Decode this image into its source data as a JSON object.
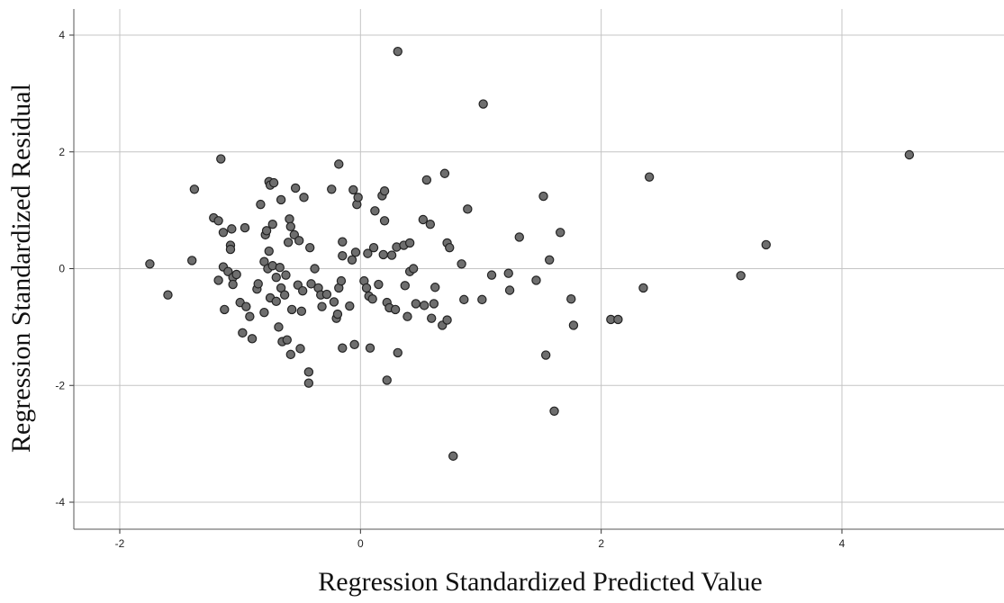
{
  "chart_data": {
    "type": "scatter",
    "xlabel": "Regression Standardized Predicted Value",
    "ylabel": "Regression Standardized Residual",
    "xlim": [
      -2.4,
      5.35
    ],
    "ylim": [
      -4.45,
      4.45
    ],
    "x_ticks": [
      -2,
      0,
      2,
      4
    ],
    "y_ticks": [
      -4,
      -2,
      0,
      2,
      4
    ],
    "x_tick_labels": [
      "-2",
      "0",
      "2",
      "4"
    ],
    "y_tick_labels": [
      "-4",
      "-2",
      "0",
      "2",
      "4"
    ],
    "grid": true,
    "point_color": "#6e6e6e",
    "point_edge_color": "#222222",
    "gridline_color": "#c4c4c4",
    "points": [
      {
        "x": -1.75,
        "y": 0.08
      },
      {
        "x": -1.6,
        "y": -0.45
      },
      {
        "x": -1.4,
        "y": 0.14
      },
      {
        "x": -1.38,
        "y": 1.36
      },
      {
        "x": -1.22,
        "y": 0.87
      },
      {
        "x": -1.18,
        "y": 0.82
      },
      {
        "x": -1.18,
        "y": -0.2
      },
      {
        "x": -1.16,
        "y": 1.88
      },
      {
        "x": -1.14,
        "y": 0.62
      },
      {
        "x": -1.14,
        "y": 0.03
      },
      {
        "x": -1.13,
        "y": -0.7
      },
      {
        "x": -1.1,
        "y": -0.05
      },
      {
        "x": -1.08,
        "y": 0.4
      },
      {
        "x": -1.08,
        "y": 0.33
      },
      {
        "x": -1.07,
        "y": 0.68
      },
      {
        "x": -1.06,
        "y": -0.15
      },
      {
        "x": -1.06,
        "y": -0.27
      },
      {
        "x": -1.03,
        "y": -0.1
      },
      {
        "x": -1.0,
        "y": -0.58
      },
      {
        "x": -0.98,
        "y": -1.1
      },
      {
        "x": -0.96,
        "y": 0.7
      },
      {
        "x": -0.95,
        "y": -0.65
      },
      {
        "x": -0.92,
        "y": -0.82
      },
      {
        "x": -0.9,
        "y": -1.2
      },
      {
        "x": -0.86,
        "y": -0.35
      },
      {
        "x": -0.85,
        "y": -0.26
      },
      {
        "x": -0.83,
        "y": 1.1
      },
      {
        "x": -0.8,
        "y": -0.75
      },
      {
        "x": -0.8,
        "y": 0.12
      },
      {
        "x": -0.79,
        "y": 0.58
      },
      {
        "x": -0.78,
        "y": 0.65
      },
      {
        "x": -0.77,
        "y": 0.0
      },
      {
        "x": -0.76,
        "y": 0.3
      },
      {
        "x": -0.76,
        "y": 1.49
      },
      {
        "x": -0.75,
        "y": 1.43
      },
      {
        "x": -0.75,
        "y": -0.5
      },
      {
        "x": -0.73,
        "y": 0.76
      },
      {
        "x": -0.73,
        "y": 0.05
      },
      {
        "x": -0.72,
        "y": 1.47
      },
      {
        "x": -0.7,
        "y": -0.56
      },
      {
        "x": -0.7,
        "y": -0.15
      },
      {
        "x": -0.68,
        "y": -1.0
      },
      {
        "x": -0.67,
        "y": 0.02
      },
      {
        "x": -0.66,
        "y": -0.33
      },
      {
        "x": -0.66,
        "y": 1.18
      },
      {
        "x": -0.65,
        "y": -1.25
      },
      {
        "x": -0.63,
        "y": -0.45
      },
      {
        "x": -0.62,
        "y": -0.11
      },
      {
        "x": -0.61,
        "y": -1.22
      },
      {
        "x": -0.6,
        "y": 0.45
      },
      {
        "x": -0.59,
        "y": 0.85
      },
      {
        "x": -0.58,
        "y": 0.72
      },
      {
        "x": -0.58,
        "y": -1.47
      },
      {
        "x": -0.57,
        "y": -0.7
      },
      {
        "x": -0.55,
        "y": 0.58
      },
      {
        "x": -0.54,
        "y": 1.38
      },
      {
        "x": -0.52,
        "y": -0.28
      },
      {
        "x": -0.51,
        "y": 0.48
      },
      {
        "x": -0.5,
        "y": -1.37
      },
      {
        "x": -0.49,
        "y": -0.73
      },
      {
        "x": -0.48,
        "y": -0.38
      },
      {
        "x": -0.47,
        "y": 1.22
      },
      {
        "x": -0.43,
        "y": -1.77
      },
      {
        "x": -0.43,
        "y": -1.96
      },
      {
        "x": -0.42,
        "y": 0.36
      },
      {
        "x": -0.41,
        "y": -0.26
      },
      {
        "x": -0.38,
        "y": 0.0
      },
      {
        "x": -0.35,
        "y": -0.33
      },
      {
        "x": -0.33,
        "y": -0.45
      },
      {
        "x": -0.32,
        "y": -0.65
      },
      {
        "x": -0.28,
        "y": -0.44
      },
      {
        "x": -0.24,
        "y": 1.36
      },
      {
        "x": -0.22,
        "y": -0.57
      },
      {
        "x": -0.2,
        "y": -0.85
      },
      {
        "x": -0.19,
        "y": -0.78
      },
      {
        "x": -0.18,
        "y": -0.33
      },
      {
        "x": -0.18,
        "y": 1.79
      },
      {
        "x": -0.16,
        "y": -0.21
      },
      {
        "x": -0.15,
        "y": 0.46
      },
      {
        "x": -0.15,
        "y": 0.22
      },
      {
        "x": -0.15,
        "y": -1.36
      },
      {
        "x": -0.09,
        "y": -0.64
      },
      {
        "x": -0.07,
        "y": 0.15
      },
      {
        "x": -0.06,
        "y": 1.35
      },
      {
        "x": -0.05,
        "y": -1.3
      },
      {
        "x": -0.04,
        "y": 0.28
      },
      {
        "x": -0.03,
        "y": 1.1
      },
      {
        "x": -0.02,
        "y": 1.22
      },
      {
        "x": 0.03,
        "y": -0.21
      },
      {
        "x": 0.05,
        "y": -0.33
      },
      {
        "x": 0.06,
        "y": 0.26
      },
      {
        "x": 0.07,
        "y": -0.47
      },
      {
        "x": 0.08,
        "y": -1.36
      },
      {
        "x": 0.1,
        "y": -0.52
      },
      {
        "x": 0.11,
        "y": 0.36
      },
      {
        "x": 0.12,
        "y": 0.99
      },
      {
        "x": 0.15,
        "y": -0.27
      },
      {
        "x": 0.18,
        "y": 1.25
      },
      {
        "x": 0.19,
        "y": 0.24
      },
      {
        "x": 0.2,
        "y": 1.33
      },
      {
        "x": 0.2,
        "y": 0.82
      },
      {
        "x": 0.22,
        "y": -0.58
      },
      {
        "x": 0.22,
        "y": -1.91
      },
      {
        "x": 0.24,
        "y": -0.67
      },
      {
        "x": 0.26,
        "y": 0.23
      },
      {
        "x": 0.29,
        "y": -0.7
      },
      {
        "x": 0.3,
        "y": 0.37
      },
      {
        "x": 0.31,
        "y": -1.44
      },
      {
        "x": 0.31,
        "y": 3.72
      },
      {
        "x": 0.36,
        "y": 0.4
      },
      {
        "x": 0.37,
        "y": -0.29
      },
      {
        "x": 0.39,
        "y": -0.82
      },
      {
        "x": 0.41,
        "y": 0.44
      },
      {
        "x": 0.41,
        "y": -0.05
      },
      {
        "x": 0.44,
        "y": 0.0
      },
      {
        "x": 0.46,
        "y": -0.6
      },
      {
        "x": 0.52,
        "y": 0.84
      },
      {
        "x": 0.53,
        "y": -0.63
      },
      {
        "x": 0.55,
        "y": 1.52
      },
      {
        "x": 0.58,
        "y": 0.76
      },
      {
        "x": 0.59,
        "y": -0.85
      },
      {
        "x": 0.61,
        "y": -0.6
      },
      {
        "x": 0.62,
        "y": -0.32
      },
      {
        "x": 0.68,
        "y": -0.97
      },
      {
        "x": 0.7,
        "y": 1.63
      },
      {
        "x": 0.72,
        "y": 0.44
      },
      {
        "x": 0.72,
        "y": -0.88
      },
      {
        "x": 0.74,
        "y": 0.36
      },
      {
        "x": 0.77,
        "y": -3.21
      },
      {
        "x": 0.84,
        "y": 0.08
      },
      {
        "x": 0.86,
        "y": -0.53
      },
      {
        "x": 0.89,
        "y": 1.02
      },
      {
        "x": 1.01,
        "y": -0.53
      },
      {
        "x": 1.02,
        "y": 2.82
      },
      {
        "x": 1.09,
        "y": -0.11
      },
      {
        "x": 1.23,
        "y": -0.08
      },
      {
        "x": 1.24,
        "y": -0.37
      },
      {
        "x": 1.32,
        "y": 0.54
      },
      {
        "x": 1.46,
        "y": -0.2
      },
      {
        "x": 1.52,
        "y": 1.24
      },
      {
        "x": 1.54,
        "y": -1.48
      },
      {
        "x": 1.57,
        "y": 0.15
      },
      {
        "x": 1.61,
        "y": -2.44
      },
      {
        "x": 1.66,
        "y": 0.62
      },
      {
        "x": 1.75,
        "y": -0.52
      },
      {
        "x": 1.77,
        "y": -0.97
      },
      {
        "x": 2.08,
        "y": -0.87
      },
      {
        "x": 2.14,
        "y": -0.87
      },
      {
        "x": 2.35,
        "y": -0.33
      },
      {
        "x": 2.4,
        "y": 1.57
      },
      {
        "x": 3.16,
        "y": -0.12
      },
      {
        "x": 3.37,
        "y": 0.41
      },
      {
        "x": 4.56,
        "y": 1.95
      }
    ]
  }
}
